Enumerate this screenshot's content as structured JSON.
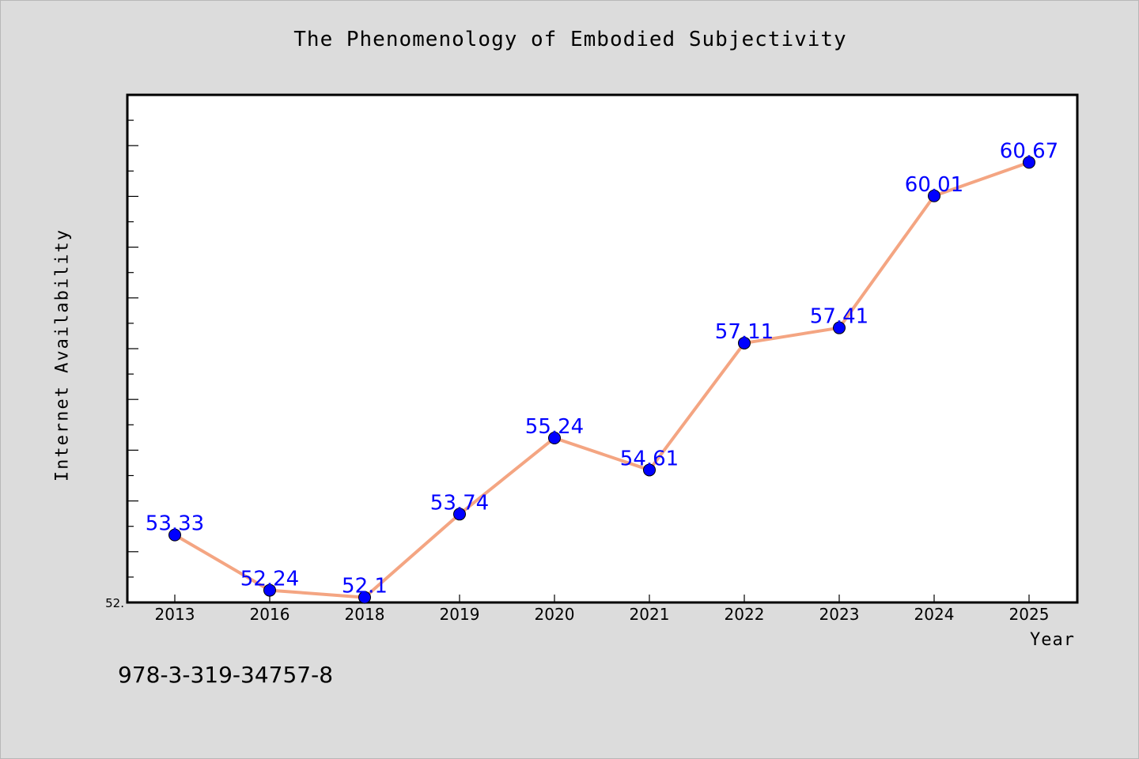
{
  "chart_data": {
    "type": "line",
    "title": "The Phenomenology of Embodied Subjectivity",
    "xlabel": "Year",
    "ylabel": "Internet Availability",
    "categories": [
      "2013",
      "2016",
      "2018",
      "2019",
      "2020",
      "2021",
      "2022",
      "2023",
      "2024",
      "2025"
    ],
    "values": [
      53.33,
      52.24,
      52.1,
      53.74,
      55.24,
      54.61,
      57.11,
      57.41,
      60.01,
      60.67
    ],
    "data_labels": [
      "53.33",
      "52.24",
      "52.1",
      "53.74",
      "55.24",
      "54.61",
      "57.11",
      "57.41",
      "60.01",
      "60.67"
    ],
    "y_axis_shown_label": "52.",
    "ylim": [
      52.0,
      62.0
    ],
    "grid": false,
    "line_color": "#f4a582",
    "marker_color": "#0000ff",
    "label_color": "#0000ff"
  },
  "footer": {
    "isbn": "978-3-319-34757-8"
  }
}
